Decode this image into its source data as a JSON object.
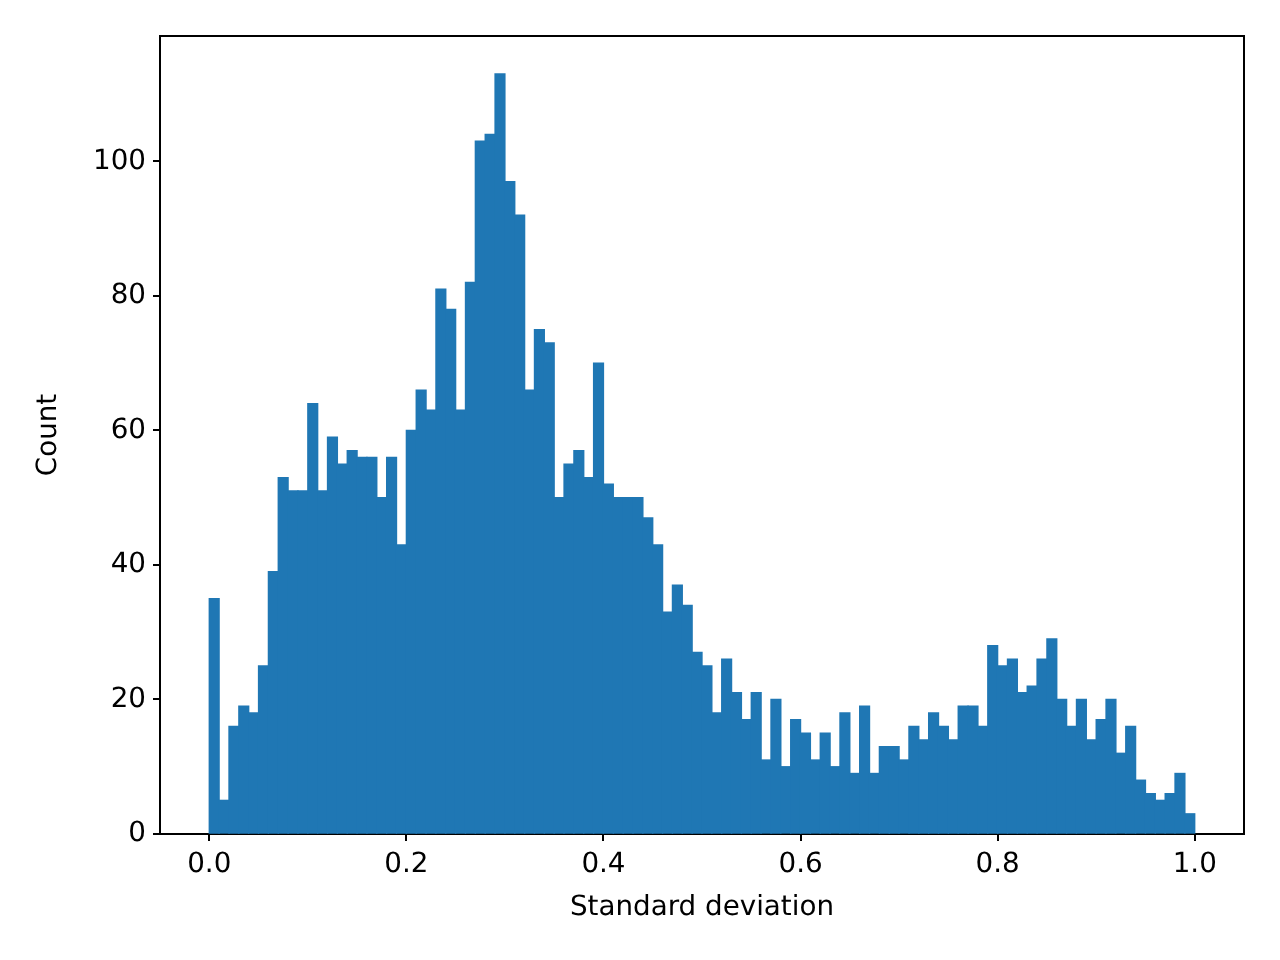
{
  "chart_data": {
    "type": "histogram",
    "xlabel": "Standard deviation",
    "ylabel": "Count",
    "color": "#1f77b4",
    "bins": [
      0,
      0.01,
      0.02,
      0.03,
      0.04,
      0.05,
      0.06,
      0.07,
      0.08,
      0.09,
      0.1,
      0.11,
      0.12,
      0.13,
      0.14,
      0.15,
      0.16,
      0.17,
      0.18,
      0.19,
      0.2,
      0.21,
      0.22,
      0.23,
      0.24,
      0.25,
      0.26,
      0.27,
      0.28,
      0.29,
      0.3,
      0.31,
      0.32,
      0.33,
      0.34,
      0.35,
      0.36,
      0.37,
      0.38,
      0.39,
      0.4,
      0.41,
      0.42,
      0.43,
      0.44,
      0.45,
      0.46,
      0.47,
      0.48,
      0.49,
      0.5,
      0.51,
      0.52,
      0.53,
      0.54,
      0.55,
      0.56,
      0.57,
      0.58,
      0.59,
      0.6,
      0.61,
      0.62,
      0.63,
      0.64,
      0.65,
      0.66,
      0.67,
      0.68,
      0.69,
      0.7,
      0.71,
      0.72,
      0.73,
      0.74,
      0.75,
      0.76,
      0.77,
      0.78,
      0.79,
      0.8,
      0.81,
      0.82,
      0.83,
      0.84,
      0.85,
      0.86,
      0.87,
      0.88,
      0.89,
      0.9,
      0.91,
      0.92,
      0.93,
      0.94,
      0.95,
      0.96,
      0.97,
      0.98,
      0.99,
      1
    ],
    "values": [
      35,
      5,
      16,
      19,
      18,
      25,
      39,
      53,
      51,
      51,
      64,
      51,
      59,
      55,
      57,
      56,
      56,
      50,
      56,
      43,
      60,
      66,
      63,
      81,
      78,
      63,
      82,
      103,
      104,
      113,
      97,
      92,
      66,
      75,
      73,
      50,
      55,
      57,
      53,
      70,
      52,
      50,
      50,
      50,
      47,
      43,
      33,
      37,
      34,
      27,
      25,
      18,
      26,
      21,
      17,
      21,
      11,
      20,
      10,
      17,
      15,
      11,
      15,
      10,
      18,
      9,
      19,
      9,
      13,
      13,
      11,
      16,
      14,
      18,
      16,
      14,
      19,
      19,
      16,
      28,
      25,
      26,
      21,
      22,
      26,
      29,
      20,
      16,
      20,
      14,
      17,
      20,
      12,
      16,
      8,
      6,
      5,
      6,
      9,
      3
    ],
    "xlim": [
      -0.05,
      1.05
    ],
    "xticks": [
      {
        "value": 0,
        "label": "0.0"
      },
      0.2,
      0.4,
      0.6,
      0.8,
      {
        "value": 1,
        "label": "1.0"
      }
    ],
    "ylim": [
      0,
      118.65
    ],
    "yticks": [
      0,
      20,
      40,
      60,
      80,
      100
    ],
    "grid": false,
    "legend": false
  }
}
